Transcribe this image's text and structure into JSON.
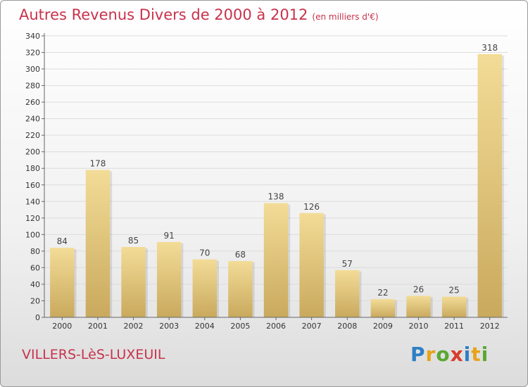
{
  "header": {
    "title": "Autres Revenus Divers de 2000 à 2012",
    "unit": "(en milliers d'€)"
  },
  "footer": {
    "place": "VILLERS-LèS-LUXEUIL",
    "logo_letters": [
      "P",
      "r",
      "o",
      "x",
      "i",
      "t",
      "i"
    ],
    "logo_colors": [
      "#2e7fc4",
      "#e8a317",
      "#5aa832",
      "#d93b2b",
      "#2e7fc4",
      "#e8a317",
      "#5aa832"
    ]
  },
  "colors": {
    "title": "#c8324c",
    "bar_light": "#f3dc97",
    "bar_dark": "#c9a95d",
    "grid": "#dcdcdc"
  },
  "chart_data": {
    "type": "bar",
    "title": "Autres Revenus Divers de 2000 à 2012",
    "subtitle": "(en milliers d'€)",
    "xlabel": "",
    "ylabel": "",
    "categories": [
      "2000",
      "2001",
      "2002",
      "2003",
      "2004",
      "2005",
      "2006",
      "2007",
      "2008",
      "2009",
      "2010",
      "2011",
      "2012"
    ],
    "values": [
      84,
      178,
      85,
      91,
      70,
      68,
      138,
      126,
      57,
      22,
      26,
      25,
      318
    ],
    "ylim": [
      0,
      340
    ],
    "yticks": [
      0,
      20,
      40,
      60,
      80,
      100,
      120,
      140,
      160,
      180,
      200,
      220,
      240,
      260,
      280,
      300,
      320,
      340
    ],
    "grid": true,
    "legend": "none"
  }
}
